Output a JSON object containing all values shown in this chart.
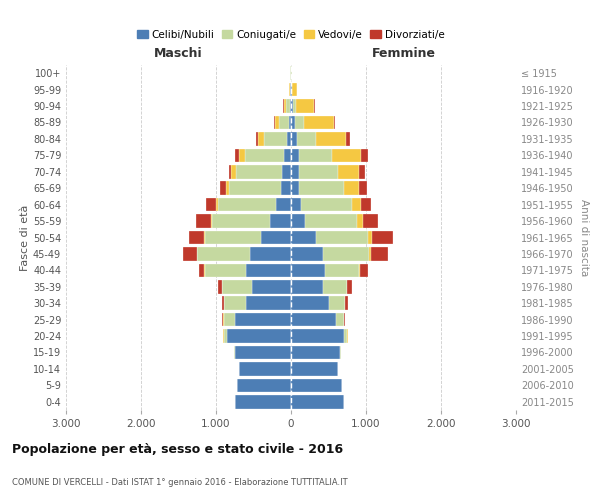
{
  "age_groups": [
    "0-4",
    "5-9",
    "10-14",
    "15-19",
    "20-24",
    "25-29",
    "30-34",
    "35-39",
    "40-44",
    "45-49",
    "50-54",
    "55-59",
    "60-64",
    "65-69",
    "70-74",
    "75-79",
    "80-84",
    "85-89",
    "90-94",
    "95-99",
    "100+"
  ],
  "birth_years": [
    "2011-2015",
    "2006-2010",
    "2001-2005",
    "1996-2000",
    "1991-1995",
    "1986-1990",
    "1981-1985",
    "1976-1980",
    "1971-1975",
    "1966-1970",
    "1961-1965",
    "1956-1960",
    "1951-1955",
    "1946-1950",
    "1941-1945",
    "1936-1940",
    "1931-1935",
    "1926-1930",
    "1921-1925",
    "1916-1920",
    "≤ 1915"
  ],
  "maschi_celibi": [
    750,
    720,
    700,
    750,
    850,
    750,
    600,
    520,
    600,
    550,
    400,
    280,
    200,
    130,
    120,
    100,
    60,
    30,
    20,
    10,
    5
  ],
  "maschi_coniugati": [
    0,
    0,
    0,
    5,
    50,
    150,
    300,
    400,
    550,
    700,
    750,
    780,
    780,
    700,
    620,
    520,
    300,
    130,
    50,
    10,
    5
  ],
  "maschi_vedovi": [
    0,
    0,
    0,
    0,
    5,
    5,
    0,
    0,
    5,
    5,
    5,
    10,
    20,
    40,
    60,
    80,
    80,
    60,
    30,
    5,
    2
  ],
  "maschi_divorziati": [
    0,
    0,
    0,
    0,
    5,
    10,
    20,
    50,
    70,
    180,
    200,
    200,
    130,
    80,
    30,
    50,
    30,
    10,
    5,
    0,
    0
  ],
  "femmine_celibi": [
    700,
    680,
    630,
    650,
    700,
    600,
    500,
    420,
    450,
    420,
    330,
    180,
    130,
    110,
    100,
    100,
    80,
    50,
    30,
    10,
    5
  ],
  "femmine_coniugati": [
    0,
    0,
    0,
    10,
    50,
    100,
    220,
    320,
    450,
    620,
    700,
    700,
    680,
    600,
    520,
    450,
    250,
    120,
    30,
    5,
    2
  ],
  "femmine_vedovi": [
    0,
    0,
    0,
    0,
    5,
    5,
    5,
    10,
    20,
    30,
    50,
    80,
    120,
    200,
    280,
    380,
    400,
    400,
    250,
    60,
    5
  ],
  "femmine_divorziati": [
    0,
    0,
    0,
    0,
    5,
    10,
    30,
    60,
    100,
    220,
    280,
    200,
    130,
    100,
    80,
    100,
    50,
    20,
    10,
    5,
    0
  ],
  "colors": {
    "celibi": "#4d7eb5",
    "coniugati": "#c5d9a0",
    "vedovi": "#f5c842",
    "divorziati": "#c0392b"
  },
  "title": "Popolazione per età, sesso e stato civile - 2016",
  "subtitle": "COMUNE DI VERCELLI - Dati ISTAT 1° gennaio 2016 - Elaborazione TUTTITALIA.IT",
  "label_maschi": "Maschi",
  "label_femmine": "Femmine",
  "ylabel_left": "Fasce di età",
  "ylabel_right": "Anni di nascita",
  "xlim": 3000,
  "bg_color": "#ffffff",
  "grid_color": "#cccccc"
}
